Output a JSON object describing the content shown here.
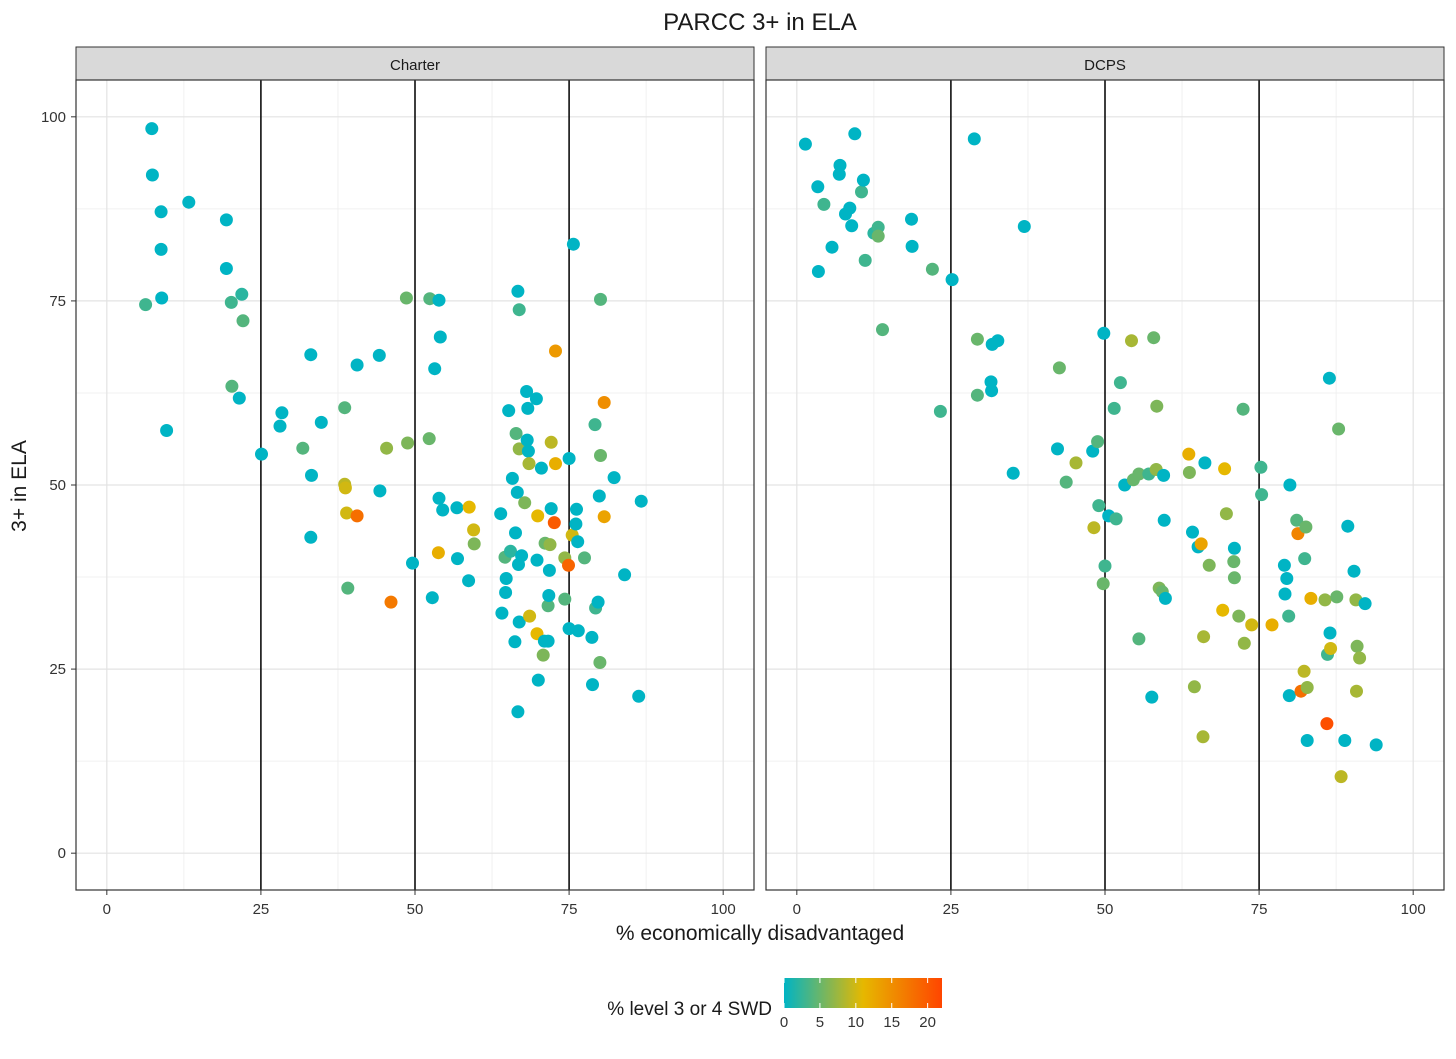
{
  "chart_data": {
    "type": "scatter",
    "title": "PARCC 3+ in ELA",
    "xlabel": "% economically disadvantaged",
    "ylabel": "3+ in ELA",
    "xlim": [
      -5,
      105
    ],
    "ylim": [
      -5,
      105
    ],
    "x_ticks": [
      0,
      25,
      50,
      75,
      100
    ],
    "y_ticks": [
      0,
      25,
      50,
      75,
      100
    ],
    "x_ticks_text": [
      "0",
      "25",
      "50",
      "75",
      "100"
    ],
    "y_ticks_text": [
      "0",
      "25",
      "50",
      "75",
      "100"
    ],
    "vlines": [
      25,
      50,
      75
    ],
    "grid": true,
    "color_scale": {
      "title": "% level 3 or 4 SWD",
      "min": 0,
      "max": 22,
      "colors": [
        "#00b4c4",
        "#e6b800",
        "#ff4500"
      ],
      "ticks": [
        0,
        5,
        10,
        15,
        20
      ],
      "ticks_text": [
        "0",
        "5",
        "10",
        "15",
        "20"
      ],
      "position": "bottom"
    },
    "panels": [
      {
        "name": "Charter",
        "points": [
          [
            7.3,
            98.4,
            0
          ],
          [
            7.4,
            92.1,
            0
          ],
          [
            8.8,
            87.1,
            0
          ],
          [
            8.8,
            82.0,
            0
          ],
          [
            6.3,
            74.5,
            3
          ],
          [
            8.9,
            75.4,
            0
          ],
          [
            9.7,
            57.4,
            0
          ],
          [
            13.3,
            88.4,
            0
          ],
          [
            19.4,
            86.0,
            0
          ],
          [
            19.4,
            79.4,
            0
          ],
          [
            20.2,
            74.8,
            3
          ],
          [
            21.9,
            75.9,
            2
          ],
          [
            22.1,
            72.3,
            4
          ],
          [
            20.3,
            63.4,
            4
          ],
          [
            21.5,
            61.8,
            0
          ],
          [
            25.1,
            54.2,
            0
          ],
          [
            28.1,
            58.0,
            0
          ],
          [
            28.4,
            59.8,
            0
          ],
          [
            31.8,
            55.0,
            4
          ],
          [
            33.1,
            67.7,
            0
          ],
          [
            33.2,
            51.3,
            0
          ],
          [
            33.1,
            42.9,
            0
          ],
          [
            34.8,
            58.5,
            0
          ],
          [
            38.6,
            60.5,
            4
          ],
          [
            39.1,
            36.0,
            4
          ],
          [
            40.6,
            66.3,
            0
          ],
          [
            44.2,
            67.6,
            0
          ],
          [
            44.3,
            49.2,
            0
          ],
          [
            38.6,
            50.1,
            9
          ],
          [
            38.7,
            49.6,
            10
          ],
          [
            38.9,
            46.2,
            10
          ],
          [
            40.6,
            45.8,
            18
          ],
          [
            46.1,
            34.1,
            17
          ],
          [
            45.4,
            55.0,
            7
          ],
          [
            48.6,
            75.4,
            5
          ],
          [
            48.8,
            55.7,
            6
          ],
          [
            49.6,
            39.4,
            0
          ],
          [
            52.4,
            75.3,
            4
          ],
          [
            52.3,
            56.3,
            5
          ],
          [
            52.8,
            34.7,
            0
          ],
          [
            53.2,
            65.8,
            0
          ],
          [
            53.9,
            75.1,
            0
          ],
          [
            54.1,
            70.1,
            0
          ],
          [
            53.9,
            48.2,
            0
          ],
          [
            54.5,
            46.6,
            0
          ],
          [
            53.8,
            40.8,
            12
          ],
          [
            56.8,
            46.9,
            0
          ],
          [
            56.9,
            40.0,
            0
          ],
          [
            58.8,
            47.0,
            11
          ],
          [
            58.7,
            37.0,
            0
          ],
          [
            59.5,
            43.9,
            10
          ],
          [
            59.6,
            42.0,
            6
          ],
          [
            63.9,
            46.1,
            0
          ],
          [
            64.1,
            32.6,
            0
          ],
          [
            64.6,
            40.2,
            4
          ],
          [
            64.7,
            35.4,
            0
          ],
          [
            64.8,
            37.3,
            0
          ],
          [
            65.2,
            60.1,
            0
          ],
          [
            65.5,
            41.0,
            2
          ],
          [
            65.8,
            50.9,
            0
          ],
          [
            66.3,
            43.5,
            0
          ],
          [
            66.2,
            28.7,
            0
          ],
          [
            66.4,
            57.0,
            4
          ],
          [
            66.6,
            49.0,
            0
          ],
          [
            66.7,
            19.2,
            0
          ],
          [
            66.8,
            39.2,
            0
          ],
          [
            66.9,
            31.4,
            0
          ],
          [
            66.9,
            54.9,
            7
          ],
          [
            66.7,
            76.3,
            0
          ],
          [
            66.9,
            73.8,
            3
          ],
          [
            67.3,
            40.4,
            0
          ],
          [
            67.8,
            47.6,
            6
          ],
          [
            68.1,
            62.7,
            0
          ],
          [
            68.2,
            56.1,
            0
          ],
          [
            68.3,
            60.4,
            0
          ],
          [
            68.4,
            54.6,
            0
          ],
          [
            68.5,
            52.9,
            8
          ],
          [
            68.6,
            32.2,
            10
          ],
          [
            69.7,
            61.7,
            0
          ],
          [
            69.8,
            39.8,
            0
          ],
          [
            69.9,
            45.8,
            11
          ],
          [
            69.8,
            29.8,
            11
          ],
          [
            70.0,
            23.5,
            0
          ],
          [
            70.5,
            52.3,
            0
          ],
          [
            70.8,
            26.9,
            6
          ],
          [
            71.0,
            28.8,
            0
          ],
          [
            71.1,
            42.1,
            5
          ],
          [
            71.6,
            33.6,
            4
          ],
          [
            71.6,
            28.8,
            0
          ],
          [
            71.7,
            35.0,
            0
          ],
          [
            71.8,
            38.4,
            0
          ],
          [
            71.9,
            41.9,
            7
          ],
          [
            72.1,
            46.8,
            0
          ],
          [
            72.1,
            55.8,
            9
          ],
          [
            72.6,
            44.9,
            20
          ],
          [
            72.8,
            68.2,
            14
          ],
          [
            72.8,
            52.9,
            12
          ],
          [
            74.3,
            40.1,
            7
          ],
          [
            74.3,
            34.5,
            4
          ],
          [
            74.9,
            39.1,
            19
          ],
          [
            75.0,
            53.6,
            0
          ],
          [
            75.0,
            30.5,
            0
          ],
          [
            75.7,
            82.7,
            0
          ],
          [
            75.5,
            43.2,
            10
          ],
          [
            76.1,
            44.7,
            0
          ],
          [
            76.2,
            46.7,
            0
          ],
          [
            76.4,
            42.3,
            0
          ],
          [
            76.5,
            30.2,
            0
          ],
          [
            77.5,
            40.1,
            4
          ],
          [
            78.7,
            29.3,
            0
          ],
          [
            78.8,
            22.9,
            0
          ],
          [
            79.2,
            58.2,
            3
          ],
          [
            79.3,
            33.3,
            3
          ],
          [
            79.7,
            34.1,
            0
          ],
          [
            79.9,
            48.5,
            0
          ],
          [
            80.0,
            25.9,
            5
          ],
          [
            80.1,
            54.0,
            5
          ],
          [
            80.1,
            75.2,
            4
          ],
          [
            80.7,
            61.2,
            15
          ],
          [
            80.7,
            45.7,
            13
          ],
          [
            82.3,
            51.0,
            0
          ],
          [
            84.0,
            37.8,
            0
          ],
          [
            86.3,
            21.3,
            0
          ],
          [
            86.7,
            47.8,
            0
          ]
        ]
      },
      {
        "name": "DCPS",
        "points": [
          [
            1.4,
            96.3,
            0
          ],
          [
            3.4,
            90.5,
            0
          ],
          [
            3.5,
            79.0,
            0
          ],
          [
            4.4,
            88.1,
            3
          ],
          [
            5.7,
            82.3,
            0
          ],
          [
            6.9,
            92.2,
            0
          ],
          [
            7.0,
            93.4,
            0
          ],
          [
            7.9,
            86.8,
            0
          ],
          [
            8.6,
            87.6,
            0
          ],
          [
            8.9,
            85.2,
            0
          ],
          [
            9.4,
            97.7,
            0
          ],
          [
            10.5,
            89.8,
            3
          ],
          [
            10.8,
            91.4,
            0
          ],
          [
            11.1,
            80.5,
            3
          ],
          [
            12.5,
            84.2,
            2
          ],
          [
            13.2,
            85.0,
            3
          ],
          [
            13.2,
            83.8,
            5
          ],
          [
            13.9,
            71.1,
            4
          ],
          [
            18.6,
            86.1,
            0
          ],
          [
            18.7,
            82.4,
            0
          ],
          [
            22.0,
            79.3,
            4
          ],
          [
            23.3,
            60.0,
            3
          ],
          [
            25.2,
            77.9,
            0
          ],
          [
            28.8,
            97.0,
            0
          ],
          [
            29.3,
            69.8,
            5
          ],
          [
            29.3,
            62.2,
            4
          ],
          [
            31.5,
            64.0,
            0
          ],
          [
            31.6,
            62.8,
            0
          ],
          [
            31.7,
            69.1,
            0
          ],
          [
            32.6,
            69.6,
            0
          ],
          [
            35.1,
            51.6,
            0
          ],
          [
            36.9,
            85.1,
            0
          ],
          [
            42.3,
            54.9,
            0
          ],
          [
            42.6,
            65.9,
            5
          ],
          [
            43.7,
            50.4,
            4
          ],
          [
            45.3,
            53.0,
            8
          ],
          [
            48.0,
            54.6,
            0
          ],
          [
            48.2,
            44.2,
            9
          ],
          [
            48.8,
            55.9,
            4
          ],
          [
            49.0,
            47.2,
            3
          ],
          [
            49.7,
            36.6,
            5
          ],
          [
            49.8,
            70.6,
            0
          ],
          [
            50.0,
            39.0,
            3
          ],
          [
            50.6,
            45.8,
            0
          ],
          [
            51.5,
            60.4,
            3
          ],
          [
            51.8,
            45.4,
            3
          ],
          [
            52.5,
            63.9,
            3
          ],
          [
            53.2,
            50.0,
            0
          ],
          [
            54.3,
            69.6,
            8
          ],
          [
            54.6,
            50.7,
            5
          ],
          [
            55.5,
            29.1,
            4
          ],
          [
            55.5,
            51.5,
            5
          ],
          [
            57.1,
            51.5,
            3
          ],
          [
            57.6,
            21.2,
            0
          ],
          [
            57.9,
            70.0,
            5
          ],
          [
            58.3,
            52.1,
            7
          ],
          [
            58.4,
            60.7,
            6
          ],
          [
            58.8,
            36.0,
            6
          ],
          [
            59.3,
            35.5,
            5
          ],
          [
            59.5,
            51.3,
            0
          ],
          [
            59.6,
            45.2,
            0
          ],
          [
            59.8,
            34.6,
            0
          ],
          [
            63.6,
            54.2,
            12
          ],
          [
            63.7,
            51.7,
            6
          ],
          [
            64.2,
            43.6,
            0
          ],
          [
            64.5,
            22.6,
            7
          ],
          [
            65.1,
            41.6,
            0
          ],
          [
            65.6,
            42.0,
            13
          ],
          [
            65.9,
            15.8,
            8
          ],
          [
            66.0,
            29.4,
            8
          ],
          [
            66.2,
            53.0,
            0
          ],
          [
            66.9,
            39.1,
            6
          ],
          [
            69.1,
            33.0,
            11
          ],
          [
            69.4,
            52.2,
            11
          ],
          [
            69.7,
            46.1,
            7
          ],
          [
            70.9,
            39.6,
            5
          ],
          [
            71.0,
            41.4,
            0
          ],
          [
            71.0,
            37.4,
            5
          ],
          [
            71.7,
            32.2,
            6
          ],
          [
            72.4,
            60.3,
            4
          ],
          [
            72.6,
            28.5,
            7
          ],
          [
            73.8,
            31.0,
            10
          ],
          [
            75.3,
            52.4,
            3
          ],
          [
            75.4,
            48.7,
            3
          ],
          [
            77.1,
            31.0,
            12
          ],
          [
            79.1,
            39.1,
            0
          ],
          [
            79.2,
            35.2,
            0
          ],
          [
            79.5,
            37.3,
            0
          ],
          [
            79.8,
            32.2,
            3
          ],
          [
            79.9,
            21.4,
            0
          ],
          [
            80.0,
            50.0,
            0
          ],
          [
            81.1,
            45.2,
            4
          ],
          [
            81.3,
            43.4,
            16
          ],
          [
            81.8,
            22.0,
            18
          ],
          [
            82.3,
            24.7,
            9
          ],
          [
            82.4,
            40.0,
            3
          ],
          [
            82.6,
            44.3,
            5
          ],
          [
            82.8,
            15.3,
            0
          ],
          [
            82.8,
            22.5,
            7
          ],
          [
            83.4,
            34.6,
            12
          ],
          [
            85.7,
            34.4,
            7
          ],
          [
            86.0,
            17.6,
            21
          ],
          [
            86.1,
            27.0,
            3
          ],
          [
            86.4,
            64.5,
            0
          ],
          [
            86.5,
            29.9,
            0
          ],
          [
            86.6,
            27.8,
            10
          ],
          [
            87.6,
            34.8,
            5
          ],
          [
            87.9,
            57.6,
            5
          ],
          [
            88.3,
            10.4,
            9
          ],
          [
            88.9,
            15.3,
            0
          ],
          [
            89.4,
            44.4,
            0
          ],
          [
            90.4,
            38.3,
            0
          ],
          [
            90.7,
            34.4,
            7
          ],
          [
            90.8,
            22.0,
            8
          ],
          [
            90.9,
            28.1,
            6
          ],
          [
            91.3,
            26.5,
            7
          ],
          [
            92.2,
            33.9,
            0
          ],
          [
            94.0,
            14.7,
            0
          ]
        ]
      }
    ]
  }
}
